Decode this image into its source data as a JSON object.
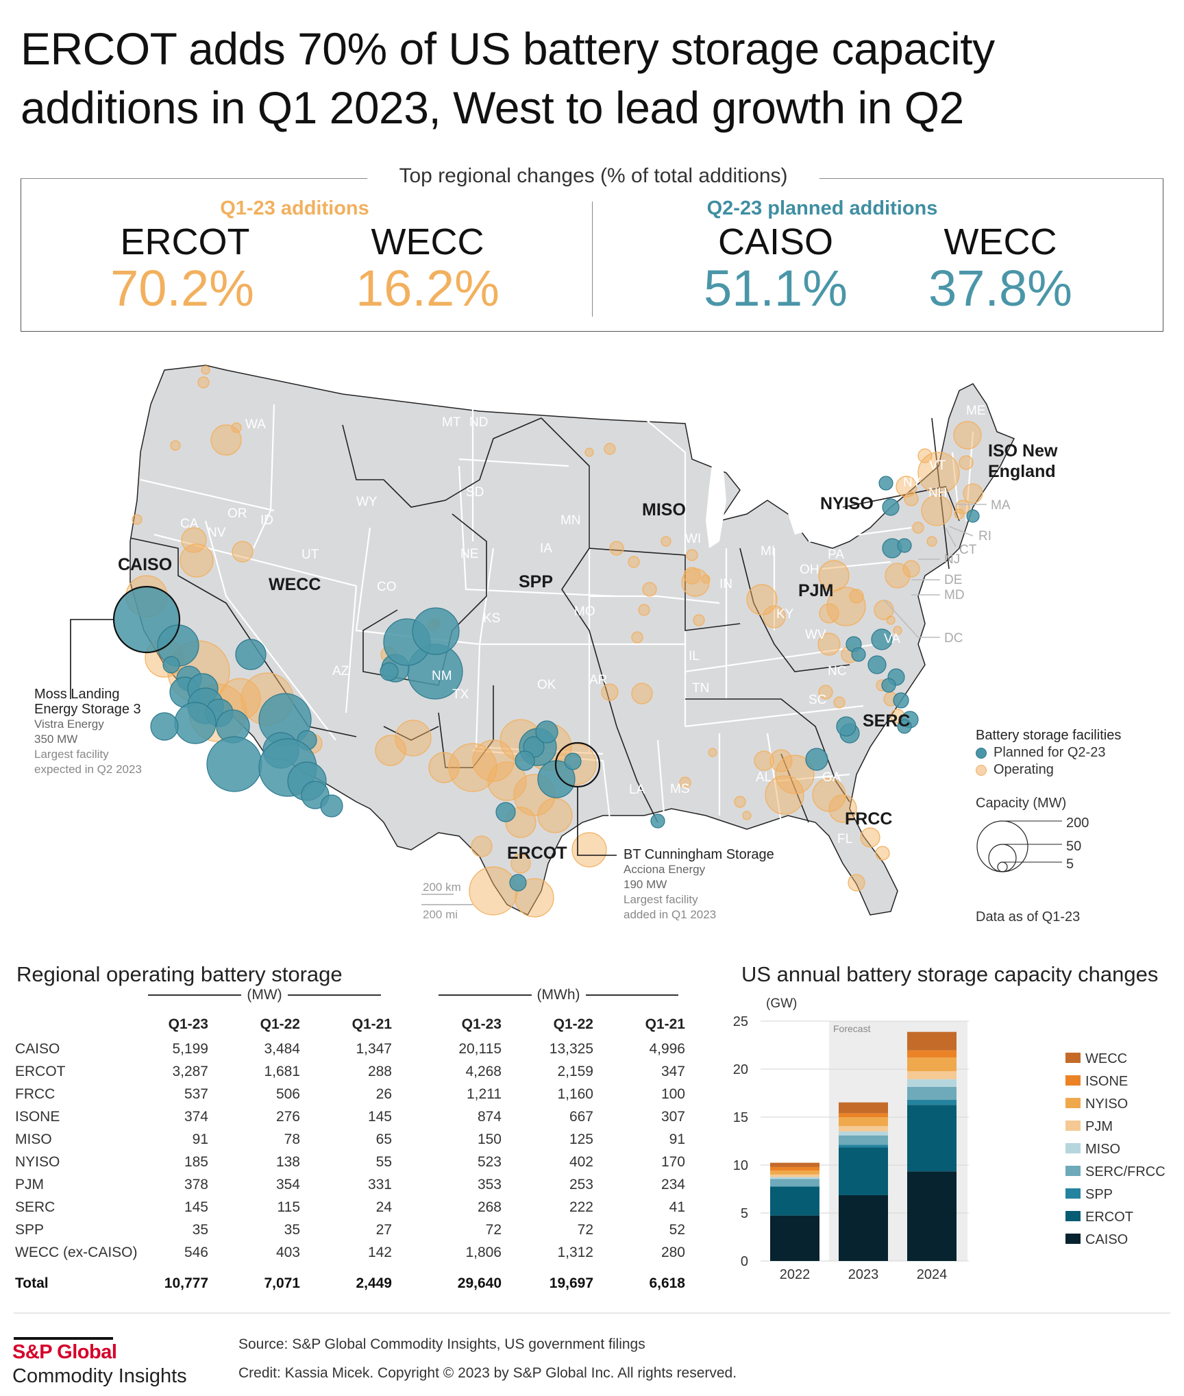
{
  "title": {
    "line1": "ERCOT adds 70% of US battery storage capacity",
    "line2": "additions in Q1 2023, West to lead growth in Q2"
  },
  "key_box": {
    "header": "Top regional changes (% of total additions)",
    "left": {
      "subtitle": "Q1-23 additions",
      "items": [
        {
          "region": "ERCOT",
          "value": "70.2%"
        },
        {
          "region": "WECC",
          "value": "16.2%"
        }
      ]
    },
    "right": {
      "subtitle": "Q2-23 planned additions",
      "items": [
        {
          "region": "CAISO",
          "value": "51.1%"
        },
        {
          "region": "WECC",
          "value": "37.8%"
        }
      ]
    }
  },
  "colors": {
    "operating": "#F2B05E",
    "planned": "#4A96A8",
    "land": "#D9DADC"
  },
  "map": {
    "region_labels": [
      "CAISO",
      "WECC",
      "SPP",
      "MISO",
      "NYISO",
      "PJM",
      "SERC",
      "FRCC",
      "ERCOT",
      "ISO New",
      "England"
    ],
    "state_labels": [
      "WA",
      "OR",
      "ID",
      "CA",
      "NV",
      "UT",
      "AZ",
      "WY",
      "CO",
      "NM",
      "MT",
      "ND",
      "SD",
      "NE",
      "KS",
      "OK",
      "TX",
      "MN",
      "IA",
      "MO",
      "AR",
      "LA",
      "WI",
      "IL",
      "MI",
      "IN",
      "OH",
      "KY",
      "TN",
      "MS",
      "AL",
      "GA",
      "FL",
      "SC",
      "NC",
      "VA",
      "WV",
      "PA",
      "NY",
      "VT",
      "NH",
      "ME",
      "MA",
      "RI",
      "CT",
      "NJ",
      "DE",
      "MD",
      "DC"
    ],
    "callout_moss": {
      "name1": "Moss Landing",
      "name2": "Energy Storage 3",
      "company": "Vistra Energy",
      "capacity": "350 MW",
      "note1": "Largest facility",
      "note2": "expected in Q2 2023"
    },
    "callout_bt": {
      "name": "BT Cunningham Storage",
      "company": "Acciona Energy",
      "capacity": "190 MW",
      "note1": "Largest facility",
      "note2": "added in Q1 2023"
    },
    "scale": {
      "km": "200 km",
      "mi": "200 mi"
    },
    "legend": {
      "title": "Battery storage facilities",
      "planned": "Planned for Q2-23",
      "operating": "Operating",
      "capacity_title": "Capacity (MW)",
      "sizes": [
        "200",
        "50",
        "5"
      ],
      "data_note": "Data as of Q1-23"
    }
  },
  "table": {
    "title": "Regional operating battery storage",
    "group_mw": "(MW)",
    "group_mwh": "(MWh)",
    "columns": [
      "Q1-23",
      "Q1-22",
      "Q1-21",
      "Q1-23",
      "Q1-22",
      "Q1-21"
    ],
    "rows": [
      {
        "region": "CAISO",
        "values": [
          "5,199",
          "3,484",
          "1,347",
          "20,115",
          "13,325",
          "4,996"
        ]
      },
      {
        "region": "ERCOT",
        "values": [
          "3,287",
          "1,681",
          "288",
          "4,268",
          "2,159",
          "347"
        ]
      },
      {
        "region": "FRCC",
        "values": [
          "537",
          "506",
          "26",
          "1,211",
          "1,160",
          "100"
        ]
      },
      {
        "region": "ISONE",
        "values": [
          "374",
          "276",
          "145",
          "874",
          "667",
          "307"
        ]
      },
      {
        "region": "MISO",
        "values": [
          "91",
          "78",
          "65",
          "150",
          "125",
          "91"
        ]
      },
      {
        "region": "NYISO",
        "values": [
          "185",
          "138",
          "55",
          "523",
          "402",
          "170"
        ]
      },
      {
        "region": "PJM",
        "values": [
          "378",
          "354",
          "331",
          "353",
          "253",
          "234"
        ]
      },
      {
        "region": "SERC",
        "values": [
          "145",
          "115",
          "24",
          "268",
          "222",
          "41"
        ]
      },
      {
        "region": "SPP",
        "values": [
          "35",
          "35",
          "27",
          "72",
          "72",
          "52"
        ]
      },
      {
        "region": "WECC (ex-CAISO)",
        "values": [
          "546",
          "403",
          "142",
          "1,806",
          "1,312",
          "280"
        ]
      }
    ],
    "total": {
      "region": "Total",
      "values": [
        "10,777",
        "7,071",
        "2,449",
        "29,640",
        "19,697",
        "6,618"
      ]
    }
  },
  "chart_data": {
    "type": "bar",
    "stacked": true,
    "title": "US annual battery storage capacity changes",
    "ylabel": "(GW)",
    "xlabel": "",
    "categories": [
      "2022",
      "2023",
      "2024"
    ],
    "ylim": [
      0,
      25
    ],
    "yticks": [
      0,
      5,
      10,
      15,
      20,
      25
    ],
    "grid": true,
    "forecast_label": "Forecast",
    "forecast_categories": [
      "2023",
      "2024"
    ],
    "legend_position": "right",
    "series": [
      {
        "name": "CAISO",
        "color": "#06232F",
        "values": [
          4.74,
          6.86,
          9.34
        ]
      },
      {
        "name": "ERCOT",
        "color": "#065C73",
        "values": [
          3.0,
          4.96,
          6.93
        ]
      },
      {
        "name": "SPP",
        "color": "#24839E",
        "values": [
          0.07,
          0.3,
          0.54
        ]
      },
      {
        "name": "SERC/FRCC",
        "color": "#6EAAB9",
        "values": [
          0.75,
          0.97,
          1.34
        ]
      },
      {
        "name": "MISO",
        "color": "#B6D6DE",
        "values": [
          0.19,
          0.42,
          0.8
        ]
      },
      {
        "name": "PJM",
        "color": "#F5C994",
        "values": [
          0.26,
          0.55,
          0.83
        ]
      },
      {
        "name": "NYISO",
        "color": "#F0A84C",
        "values": [
          0.42,
          0.92,
          1.42
        ]
      },
      {
        "name": "ISONE",
        "color": "#EB8326",
        "values": [
          0.36,
          0.42,
          0.75
        ]
      },
      {
        "name": "WECC",
        "color": "#C46B2A",
        "values": [
          0.45,
          1.13,
          1.93
        ]
      }
    ]
  },
  "footer": {
    "logo_line1": "S&P Global",
    "logo_line2": "Commodity Insights",
    "source": "Source: S&P Global Commodity Insights, US government filings",
    "credit": "Credit: Kassia Micek.  Copyright © 2023 by S&P Global Inc. All rights reserved."
  }
}
